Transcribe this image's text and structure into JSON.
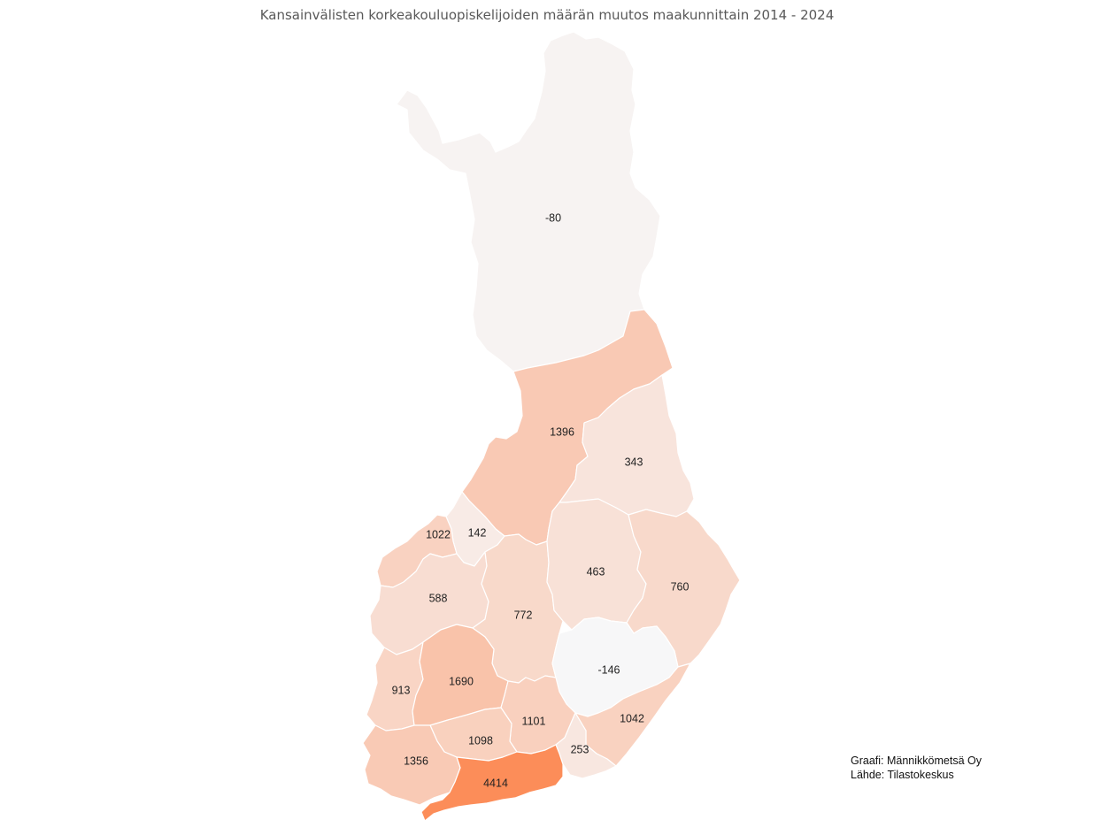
{
  "title": "Kansainvälisten korkeakouluopiskelijoiden määrän muutos maakunnittain 2014 - 2024",
  "credits": {
    "graph": "Graafi: Männikkömetsä Oy",
    "source": "Lähde: Tilastokeskus"
  },
  "colors": {
    "min": "#f7f7f8",
    "max": "#fc8d59",
    "stroke": "#ffffff"
  },
  "chart_data": {
    "type": "choropleth",
    "value_range": [
      -146,
      4414
    ],
    "regions": [
      {
        "id": "lappi",
        "value": -80
      },
      {
        "id": "pohjois-pohjanmaa",
        "value": 1396
      },
      {
        "id": "kainuu",
        "value": 343
      },
      {
        "id": "keski-pohjanmaa",
        "value": 142
      },
      {
        "id": "pohjanmaa",
        "value": 1022
      },
      {
        "id": "etela-pohjanmaa",
        "value": 588
      },
      {
        "id": "keski-suomi",
        "value": 772
      },
      {
        "id": "pohjois-savo",
        "value": 463
      },
      {
        "id": "pohjois-karjala",
        "value": 760
      },
      {
        "id": "etela-savo",
        "value": -146
      },
      {
        "id": "satakunta",
        "value": 913
      },
      {
        "id": "pirkanmaa",
        "value": 1690
      },
      {
        "id": "paijat-hame",
        "value": 1101
      },
      {
        "id": "etela-karjala",
        "value": 1042
      },
      {
        "id": "kanta-hame",
        "value": 1098
      },
      {
        "id": "kymenlaakso",
        "value": 253
      },
      {
        "id": "varsinais-suomi",
        "value": 1356
      },
      {
        "id": "uusimaa",
        "value": 4414
      }
    ]
  }
}
